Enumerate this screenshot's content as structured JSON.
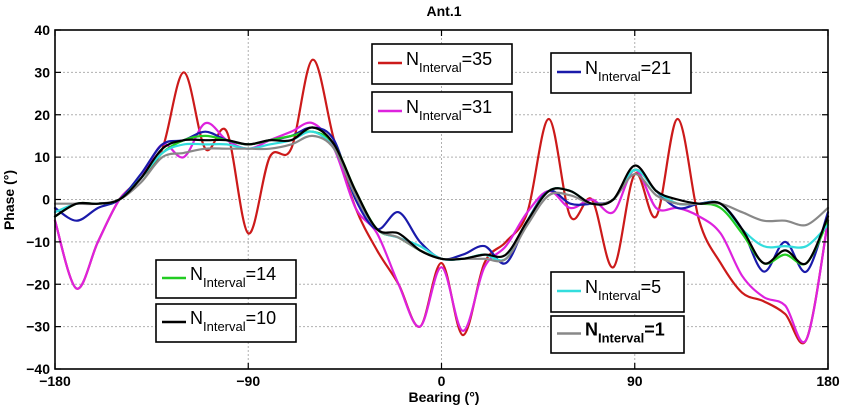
{
  "chart_data": {
    "type": "line",
    "title": "Ant.1",
    "xlabel": "Bearing (°)",
    "ylabel": "Phase (°)",
    "xlim": [
      -180,
      180
    ],
    "ylim": [
      -40,
      40
    ],
    "xticks": [
      -180,
      -90,
      0,
      90,
      180
    ],
    "yticks": [
      -40,
      -30,
      -20,
      -10,
      0,
      10,
      20,
      30,
      40
    ],
    "grid": true,
    "x": [
      -180,
      -170,
      -160,
      -150,
      -140,
      -130,
      -120,
      -110,
      -100,
      -90,
      -80,
      -70,
      -60,
      -50,
      -40,
      -30,
      -20,
      -10,
      0,
      10,
      20,
      30,
      40,
      50,
      60,
      70,
      80,
      90,
      100,
      110,
      120,
      130,
      140,
      150,
      160,
      170,
      180
    ],
    "series": [
      {
        "name_main": "N",
        "name_sub": "Interval",
        "name_rest": "=35",
        "bold": false,
        "color": "#cc1a1a",
        "values": [
          -5,
          -21,
          -10,
          0,
          5,
          12,
          30,
          12,
          16,
          -8,
          10,
          12,
          33,
          14,
          -2,
          -12,
          -20,
          -30,
          -15,
          -32,
          -15,
          -10,
          -3,
          19,
          -4,
          0,
          -16,
          6,
          -4,
          19,
          -5,
          -15,
          -22,
          -24,
          -27,
          -33,
          -5
        ]
      },
      {
        "name_main": "N",
        "name_sub": "Interval",
        "name_rest": "=31",
        "bold": false,
        "color": "#dd22dd",
        "values": [
          -5,
          -21,
          -10,
          0,
          5,
          13,
          10,
          18,
          14,
          12,
          14,
          16,
          18,
          12,
          -2,
          -8,
          -20,
          -30,
          -16,
          -31,
          -16,
          -11,
          -3,
          2,
          -2,
          0,
          -3,
          7,
          -2,
          -2,
          -4,
          -8,
          -18,
          -23,
          -25,
          -33,
          -5
        ]
      },
      {
        "name_main": "N",
        "name_sub": "Interval",
        "name_rest": "=21",
        "bold": false,
        "color": "#1a1aaa",
        "values": [
          -2,
          -5,
          -2,
          0,
          6,
          13,
          14,
          16,
          14,
          13,
          14,
          15,
          17,
          14,
          0,
          -7,
          -3,
          -10,
          -14,
          -13,
          -11,
          -15,
          -5,
          2,
          -1,
          -1,
          0,
          7,
          2,
          -2,
          -1,
          -1,
          -7,
          -17,
          -10,
          -17,
          -3
        ]
      },
      {
        "name_main": "N",
        "name_sub": "Interval",
        "name_rest": "=14",
        "bold": false,
        "color": "#22cc22",
        "values": [
          -4,
          -1,
          -1,
          0,
          5,
          11,
          14,
          15,
          14,
          13,
          14,
          15,
          16,
          13,
          2,
          -7,
          -9,
          -12,
          -14,
          -14,
          -13,
          -14,
          -5,
          2,
          2,
          -1,
          0,
          7,
          2,
          -1,
          -1,
          -2,
          -8,
          -15,
          -13,
          -15,
          -5
        ]
      },
      {
        "name_main": "N",
        "name_sub": "Interval",
        "name_rest": "=10",
        "bold": false,
        "color": "#000000",
        "values": [
          -4,
          -1,
          -1,
          0,
          5,
          12,
          14,
          14,
          14,
          13,
          14,
          14,
          17,
          13,
          2,
          -7,
          -8,
          -12,
          -14,
          -14,
          -13,
          -13,
          -5,
          2,
          2,
          -1,
          0,
          8,
          2,
          0,
          -1,
          -1,
          -7,
          -15,
          -12,
          -15,
          -4
        ]
      },
      {
        "name_main": "N",
        "name_sub": "Interval",
        "name_rest": "=5",
        "bold": false,
        "color": "#33dddd",
        "values": [
          -3,
          -1,
          -1,
          0,
          5,
          11,
          13,
          13,
          13,
          12,
          13,
          14,
          16,
          12,
          1,
          -7,
          -9,
          -11,
          -14,
          -14,
          -13,
          -14,
          -5,
          2,
          2,
          -1,
          0,
          7,
          2,
          -1,
          -1,
          -1,
          -7,
          -11,
          -11,
          -11,
          -6
        ]
      },
      {
        "name_main": "N",
        "name_sub": "Interval",
        "name_rest": "=1",
        "bold": true,
        "color": "#888888",
        "values": [
          -1,
          -1,
          -1,
          0,
          4,
          10,
          11,
          12,
          12,
          12,
          12,
          13,
          15,
          12,
          1,
          -7,
          -9,
          -12,
          -14,
          -14,
          -14,
          -14,
          -6,
          1,
          1,
          -1,
          0,
          6,
          1,
          -1,
          -1,
          -1,
          -3,
          -5,
          -5,
          -6,
          -2
        ]
      }
    ]
  }
}
